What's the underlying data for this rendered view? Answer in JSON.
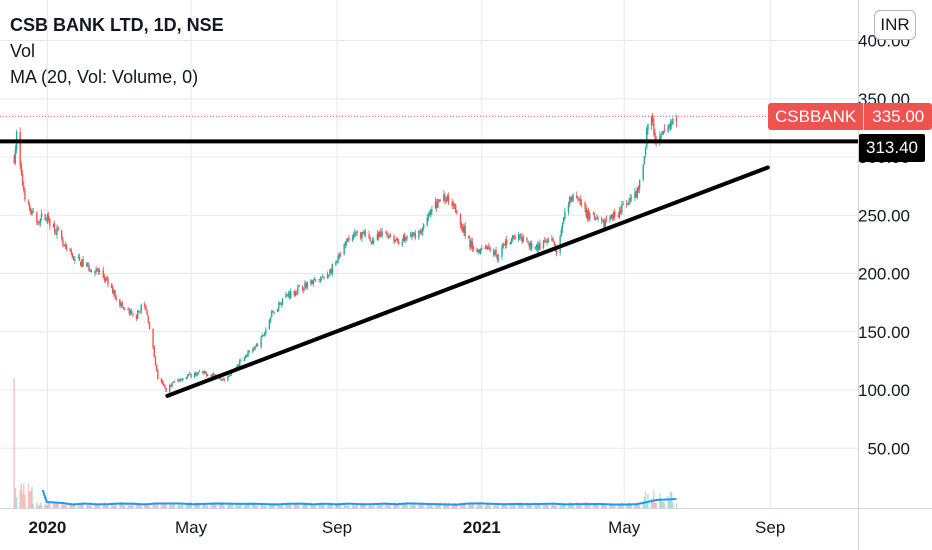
{
  "legend": {
    "title": "CSB BANK LTD, 1D, NSE",
    "vol": "Vol",
    "ma": "MA (20, Vol: Volume, 0)"
  },
  "currency_button": "INR",
  "last_price_tag": {
    "symbol": "CSBBANK",
    "value": "335.00"
  },
  "level_tag": "313.40",
  "colors": {
    "up": "#26a69a",
    "down": "#ef5350",
    "ma": "#2196f3",
    "grid": "#e6e8ee",
    "drawing": "#000000"
  },
  "chart_data": {
    "type": "candlestick",
    "x_tick_labels": [
      "2020",
      "May",
      "Sep",
      "2021",
      "May",
      "Sep"
    ],
    "x_tick_dates": [
      "2020-01-01",
      "2020-05-01",
      "2020-09-01",
      "2021-01-01",
      "2021-05-01",
      "2021-09-01"
    ],
    "x_range": [
      "2019-11-22",
      "2021-11-14"
    ],
    "y_range": [
      0,
      410
    ],
    "y_tick_labels": [
      "50.00",
      "100.00",
      "150.00",
      "200.00",
      "250.00",
      "300.00",
      "350.00",
      "400.00"
    ],
    "y_tick_values": [
      50,
      100,
      150,
      200,
      250,
      300,
      350,
      400
    ],
    "price_path": [
      [
        "2019-12-04",
        300
      ],
      [
        "2019-12-06",
        318
      ],
      [
        "2019-12-10",
        282
      ],
      [
        "2019-12-15",
        258
      ],
      [
        "2019-12-22",
        245
      ],
      [
        "2019-12-30",
        250
      ],
      [
        "2020-01-08",
        238
      ],
      [
        "2020-01-15",
        222
      ],
      [
        "2020-01-25",
        212
      ],
      [
        "2020-02-05",
        205
      ],
      [
        "2020-02-15",
        200
      ],
      [
        "2020-02-25",
        185
      ],
      [
        "2020-03-05",
        170
      ],
      [
        "2020-03-15",
        162
      ],
      [
        "2020-03-22",
        175
      ],
      [
        "2020-03-26",
        160
      ],
      [
        "2020-03-30",
        135
      ],
      [
        "2020-04-03",
        110
      ],
      [
        "2020-04-10",
        100
      ],
      [
        "2020-04-18",
        108
      ],
      [
        "2020-04-28",
        112
      ],
      [
        "2020-05-08",
        115
      ],
      [
        "2020-05-20",
        113
      ],
      [
        "2020-05-30",
        110
      ],
      [
        "2020-06-08",
        120
      ],
      [
        "2020-06-18",
        132
      ],
      [
        "2020-06-28",
        140
      ],
      [
        "2020-07-08",
        165
      ],
      [
        "2020-07-18",
        180
      ],
      [
        "2020-07-28",
        185
      ],
      [
        "2020-08-08",
        192
      ],
      [
        "2020-08-20",
        195
      ],
      [
        "2020-09-01",
        210
      ],
      [
        "2020-09-10",
        228
      ],
      [
        "2020-09-20",
        235
      ],
      [
        "2020-10-01",
        228
      ],
      [
        "2020-10-12",
        235
      ],
      [
        "2020-10-22",
        228
      ],
      [
        "2020-11-02",
        232
      ],
      [
        "2020-11-12",
        238
      ],
      [
        "2020-11-22",
        258
      ],
      [
        "2020-11-30",
        265
      ],
      [
        "2020-12-08",
        262
      ],
      [
        "2020-12-14",
        245
      ],
      [
        "2020-12-20",
        228
      ],
      [
        "2020-12-28",
        220
      ],
      [
        "2021-01-05",
        225
      ],
      [
        "2021-01-14",
        215
      ],
      [
        "2021-01-22",
        228
      ],
      [
        "2021-01-30",
        232
      ],
      [
        "2021-02-08",
        225
      ],
      [
        "2021-02-18",
        223
      ],
      [
        "2021-02-28",
        228
      ],
      [
        "2021-03-06",
        218
      ],
      [
        "2021-03-12",
        250
      ],
      [
        "2021-03-18",
        268
      ],
      [
        "2021-03-26",
        258
      ],
      [
        "2021-04-03",
        248
      ],
      [
        "2021-04-12",
        242
      ],
      [
        "2021-04-20",
        248
      ],
      [
        "2021-04-28",
        255
      ],
      [
        "2021-05-05",
        260
      ],
      [
        "2021-05-12",
        270
      ],
      [
        "2021-05-17",
        290
      ],
      [
        "2021-05-20",
        322
      ],
      [
        "2021-05-24",
        335
      ],
      [
        "2021-05-28",
        308
      ],
      [
        "2021-06-02",
        318
      ],
      [
        "2021-06-06",
        325
      ],
      [
        "2021-06-10",
        330
      ],
      [
        "2021-06-14",
        335
      ]
    ],
    "volume_ma_level": 4,
    "last_price": 335.0,
    "horizontal_level": 313.4,
    "trendline": {
      "start": [
        "2020-04-11",
        95
      ],
      "end": [
        "2021-08-30",
        291
      ]
    },
    "grid": true,
    "scale_position": "right"
  }
}
